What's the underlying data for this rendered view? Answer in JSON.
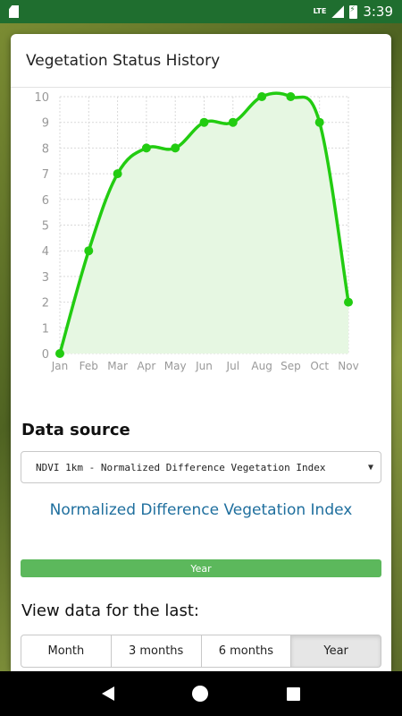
{
  "status_bar": {
    "time": "3:39",
    "network": "LTE"
  },
  "dialog": {
    "title": "Vegetation Status History"
  },
  "chart_data": {
    "type": "line",
    "categories": [
      "Jan",
      "Feb",
      "Mar",
      "Apr",
      "May",
      "Jun",
      "Jul",
      "Aug",
      "Sep",
      "Oct",
      "Nov"
    ],
    "values": [
      0,
      4,
      7,
      8,
      8,
      9,
      9,
      10,
      10,
      9,
      2
    ],
    "ylim": [
      0,
      10
    ],
    "yticks": [
      0,
      1,
      2,
      3,
      4,
      5,
      6,
      7,
      8,
      9,
      10
    ],
    "grid": true,
    "line_color": "#22cc11",
    "fill_color": "#e6f7e2",
    "title": "",
    "xlabel": "",
    "ylabel": ""
  },
  "data_source": {
    "heading": "Data source",
    "selected": "NDVI 1km - Normalized Difference Vegetation Index",
    "index_name": "Normalized Difference Vegetation Index"
  },
  "period_bar": {
    "label": "Year"
  },
  "view": {
    "heading": "View data for the last:",
    "options": [
      "Month",
      "3 months",
      "6 months",
      "Year"
    ],
    "active": "Year"
  },
  "colors": {
    "accent_green": "#5cb85c",
    "link_blue": "#1f6f9e",
    "status_bar": "#1f6e2f"
  }
}
